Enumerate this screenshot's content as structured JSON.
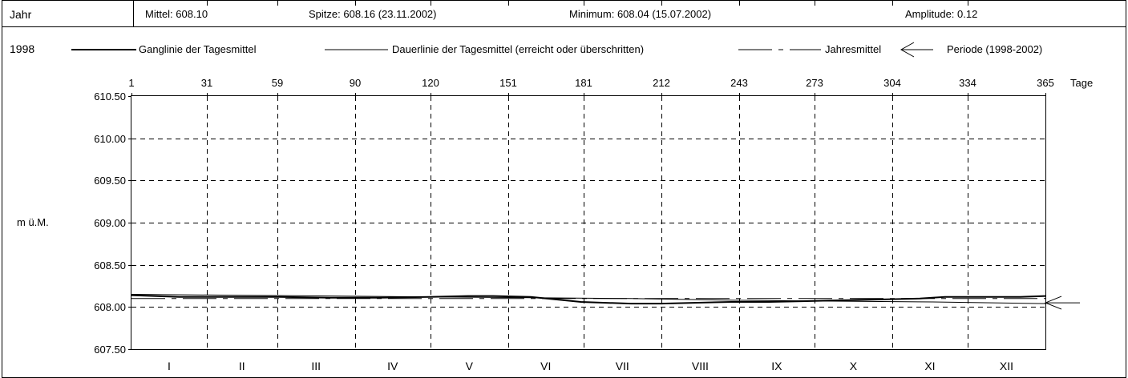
{
  "header": {
    "year_label": "Jahr",
    "mittel": "Mittel: 608.10",
    "spitze": "Spitze: 608.16 (23.11.2002)",
    "minimum": "Minimum: 608.04 (15.07.2002)",
    "amplitude": "Amplitude: 0.12"
  },
  "legend": {
    "year": "1998",
    "ganglinie": "Ganglinie der Tagesmittel",
    "dauerlinie": "Dauerlinie der Tagesmittel (erreicht oder überschritten)",
    "jahresmittel": "Jahresmittel",
    "periode": "Periode (1998-2002)"
  },
  "chart_data": {
    "type": "line",
    "ylabel": "m ü.M.",
    "xlabel": "Tage",
    "xlim": [
      1,
      365
    ],
    "ylim": [
      607.5,
      610.5
    ],
    "grid": true,
    "top_ticks": [
      1,
      31,
      59,
      90,
      120,
      151,
      181,
      212,
      243,
      273,
      304,
      334,
      365
    ],
    "y_ticks": [
      "610.50",
      "610.00",
      "609.50",
      "609.00",
      "608.50",
      "608.00",
      "607.50"
    ],
    "months": [
      "I",
      "II",
      "III",
      "IV",
      "V",
      "VI",
      "VII",
      "VIII",
      "IX",
      "X",
      "XI",
      "XII"
    ],
    "jahresmittel": 608.1,
    "periode_mittel": 608.05,
    "series": [
      {
        "name": "Ganglinie der Tagesmittel",
        "x": [
          1,
          20,
          40,
          60,
          80,
          100,
          120,
          135,
          145,
          160,
          170,
          180,
          190,
          200,
          212,
          225,
          240,
          255,
          270,
          285,
          300,
          315,
          325,
          335,
          345,
          355,
          365
        ],
        "y": [
          608.14,
          608.12,
          608.12,
          608.12,
          608.11,
          608.11,
          608.12,
          608.13,
          608.13,
          608.12,
          608.09,
          608.06,
          608.05,
          608.04,
          608.04,
          608.05,
          608.06,
          608.06,
          608.07,
          608.08,
          608.09,
          608.1,
          608.12,
          608.12,
          608.12,
          608.12,
          608.13
        ]
      },
      {
        "name": "Dauerlinie der Tagesmittel (erreicht oder überschritten)",
        "x": [
          1,
          40,
          80,
          120,
          160,
          200,
          240,
          280,
          320,
          365
        ],
        "y": [
          608.15,
          608.14,
          608.13,
          608.12,
          608.11,
          608.1,
          608.08,
          608.07,
          608.06,
          608.04
        ]
      }
    ]
  }
}
